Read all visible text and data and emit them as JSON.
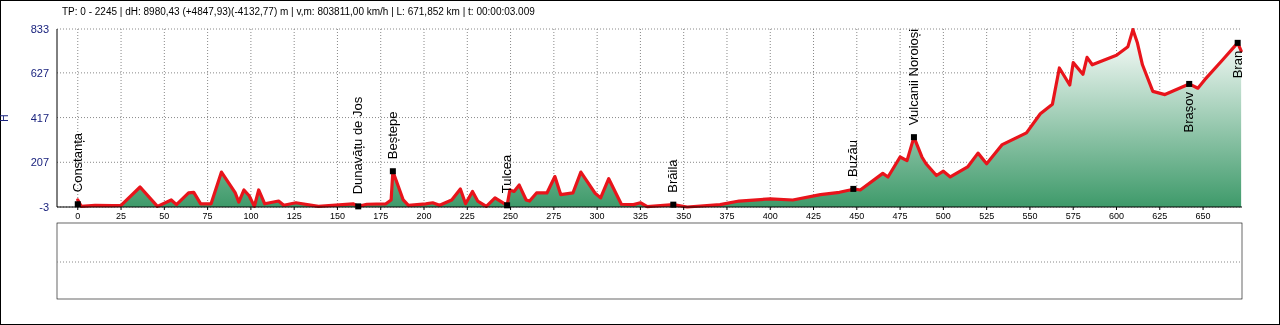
{
  "chart_data": {
    "type": "area",
    "title": "TP: 0 - 2245 | dH: 8980,43  (+4847,93)(-4132,77) m | v,m: 803811,00 km/h | L: 671,852 km | t: 00:00:03.009",
    "ylabel": "H",
    "xlim": [
      -12,
      672.5
    ],
    "ylim": [
      -3,
      833
    ],
    "xticks": [
      0,
      25,
      50,
      75,
      100,
      125,
      150,
      175,
      200,
      225,
      250,
      275,
      300,
      325,
      350,
      375,
      400,
      425,
      450,
      475,
      500,
      525,
      550,
      575,
      600,
      625,
      650
    ],
    "yticks": [
      -3,
      207,
      417,
      627,
      833
    ],
    "grid": true,
    "marker": "none",
    "line_style": "solid",
    "series": [
      {
        "color": "#e8141b",
        "x": [
          0,
          2,
          10,
          20,
          25,
          36,
          46,
          54,
          57,
          64,
          67,
          71,
          77,
          83,
          91,
          93,
          96,
          99,
          102,
          104.5,
          108,
          116,
          119,
          126,
          139,
          159,
          162,
          167,
          178,
          181,
          182,
          188,
          191,
          201,
          205,
          209,
          216,
          221,
          224,
          228,
          231,
          236,
          241,
          248,
          249.6,
          252,
          255,
          259,
          261,
          265,
          271,
          275.6,
          279,
          286,
          290.6,
          298.7,
          302,
          306.7,
          314,
          321,
          325,
          329,
          344,
          352,
          371,
          382,
          400,
          413,
          429,
          440,
          446,
          448,
          452,
          465,
          468,
          475,
          479,
          483,
          487.6,
          490,
          496,
          500,
          504,
          514,
          520,
          525,
          534,
          548,
          556,
          563,
          567,
          573,
          575,
          580.6,
          583,
          586,
          600,
          606.6,
          609.5,
          612,
          615,
          621,
          628,
          642,
          647,
          651,
          661.5,
          670,
          672
        ],
        "values": [
          30,
          0,
          5,
          3,
          5,
          91,
          0,
          30,
          8,
          63,
          66,
          12,
          12,
          161,
          63,
          20,
          77,
          50,
          0,
          77,
          12,
          25,
          5,
          17,
          0,
          12,
          0,
          10,
          12,
          30,
          165,
          30,
          5,
          12,
          17,
          5,
          30,
          82,
          12,
          70,
          25,
          0,
          40,
          5,
          77,
          70,
          100,
          30,
          25,
          63,
          63,
          140,
          55,
          63,
          161,
          63,
          40,
          130,
          10,
          8,
          17,
          -1,
          8,
          -3,
          8,
          25,
          35,
          30,
          55,
          66,
          77,
          82,
          77,
          155,
          138,
          232,
          215,
          325,
          232,
          200,
          145,
          165,
          138,
          185,
          250,
          200,
          290,
          345,
          435,
          480,
          650,
          570,
          675,
          620,
          700,
          665,
          710,
          750,
          830,
          770,
          665,
          540,
          525,
          575,
          555,
          595,
          690,
          768,
          730
        ]
      }
    ],
    "annotations": [
      {
        "text": "Constanța",
        "x": 0,
        "y": 10
      },
      {
        "text": "Dunavățu de Jos",
        "x": 162,
        "y": 0
      },
      {
        "text": "Beștepe",
        "x": 182,
        "y": 165
      },
      {
        "text": "Tulcea",
        "x": 248,
        "y": 5
      },
      {
        "text": "Brăila",
        "x": 344,
        "y": 8
      },
      {
        "text": "Buzău",
        "x": 448,
        "y": 82
      },
      {
        "text": "Vulcanii Noroioși",
        "x": 483,
        "y": 325
      },
      {
        "text": "Brașov",
        "x": 642,
        "y": 575
      },
      {
        "text": "Bran",
        "x": 670,
        "y": 768
      }
    ]
  }
}
